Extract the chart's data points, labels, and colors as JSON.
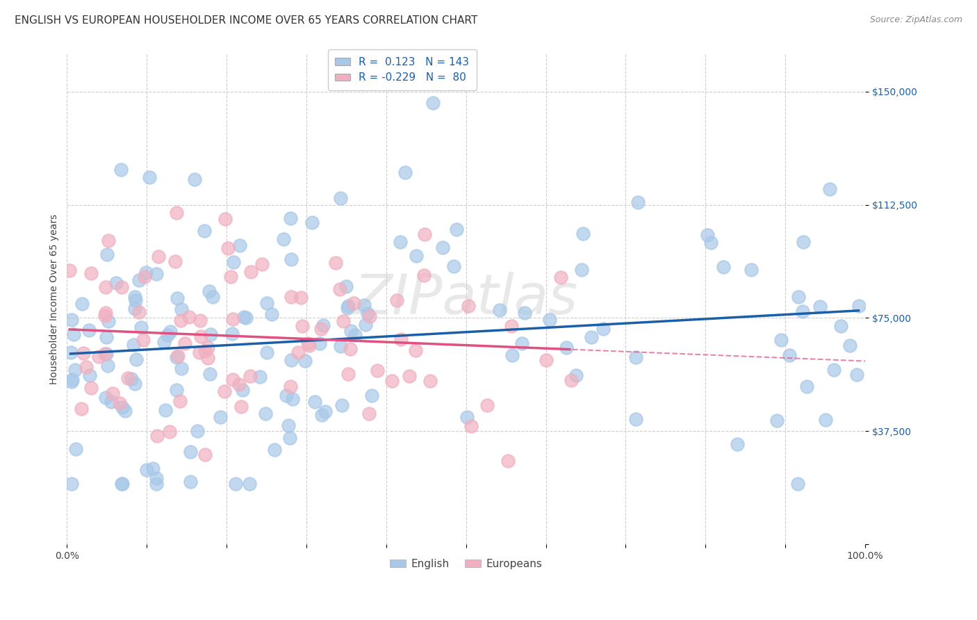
{
  "title": "ENGLISH VS EUROPEAN HOUSEHOLDER INCOME OVER 65 YEARS CORRELATION CHART",
  "source": "Source: ZipAtlas.com",
  "ylabel": "Householder Income Over 65 years",
  "watermark": "ZIPatlas",
  "legend_english": {
    "R": "0.123",
    "N": "143"
  },
  "legend_european": {
    "R": "-0.229",
    "N": "80"
  },
  "english_color": "#a8c8e8",
  "european_color": "#f0b0c0",
  "english_line_color": "#1a5fa8",
  "european_line_color": "#e05080",
  "ylim": [
    0,
    162500
  ],
  "xlim": [
    0.0,
    1.0
  ],
  "yticks": [
    0,
    37500,
    75000,
    112500,
    150000
  ],
  "ytick_labels": [
    "",
    "$37,500",
    "$75,000",
    "$112,500",
    "$150,000"
  ],
  "xticks": [
    0.0,
    0.1,
    0.2,
    0.3,
    0.4,
    0.5,
    0.6,
    0.7,
    0.8,
    0.9,
    1.0
  ],
  "xtick_labels": [
    "0.0%",
    "",
    "",
    "",
    "",
    "",
    "",
    "",
    "",
    "",
    "100.0%"
  ],
  "background_color": "#ffffff",
  "grid_color": "#cccccc",
  "title_fontsize": 11,
  "axis_label_fontsize": 10,
  "tick_fontsize": 10,
  "legend_fontsize": 11
}
